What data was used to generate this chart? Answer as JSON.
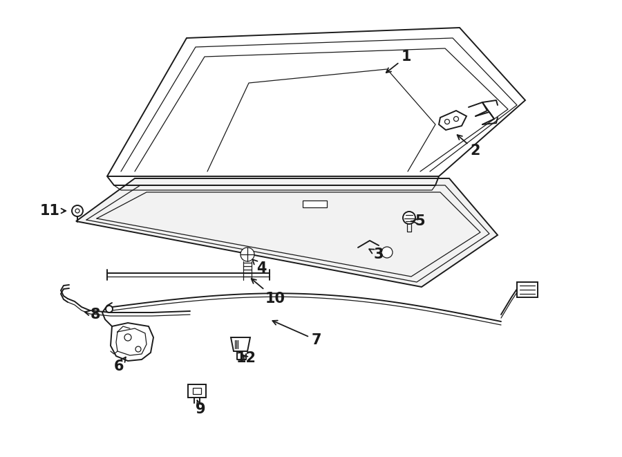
{
  "bg_color": "#ffffff",
  "line_color": "#1a1a1a",
  "fig_width": 9.0,
  "fig_height": 6.61,
  "dpi": 100,
  "label_fontsize": 15,
  "label_fontweight": "bold",
  "arrow_color": "#1a1a1a"
}
